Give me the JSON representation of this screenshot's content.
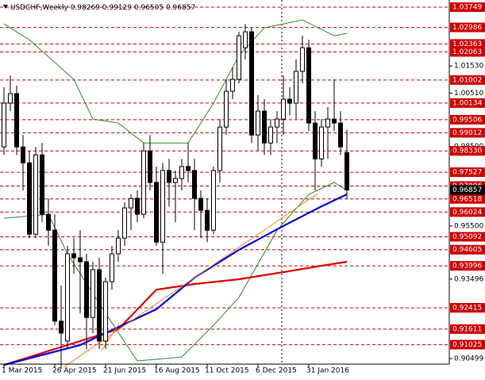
{
  "chart_data": {
    "type": "candlestick",
    "title": "USDCHF,Weekly",
    "xlim": [
      -0.625,
      70.125
    ],
    "ylim": [
      0.9029,
      1.0402
    ],
    "xticks": [
      {
        "value": 0,
        "label": "1 Mar 2015"
      },
      {
        "value": 8,
        "label": "26 Apr 2015"
      },
      {
        "value": 16,
        "label": "21 Jun 2015"
      },
      {
        "value": 24,
        "label": "16 Aug 2015"
      },
      {
        "value": 32,
        "label": "11 Oct 2015"
      },
      {
        "value": 40,
        "label": "6 Dec 2015"
      },
      {
        "value": 48,
        "label": "31 Jan 2016"
      }
    ],
    "yticks": [
      {
        "value": 1.0153,
        "label": "1.01530"
      },
      {
        "value": 1.0051,
        "label": "1.00510"
      },
      {
        "value": 0.985,
        "label": "0.98500"
      },
      {
        "value": 0.955,
        "label": "0.95500"
      },
      0.93496,
      0.90499
    ],
    "levels": [
      1.03749,
      1.02986,
      1.02363,
      1.02063,
      1.01002,
      1.00134,
      0.99506,
      0.99012,
      {
        "value": 0.9833,
        "label": "0.98330"
      },
      0.97527,
      0.97006,
      0.96518,
      0.96024,
      0.95092,
      0.94605,
      0.93996,
      0.92415,
      0.91611,
      0.91025
    ],
    "level_color": "#cc0000",
    "bull_color": "#ffffff",
    "bear_color": "#000000",
    "open": [
      0.9848,
      1.0013,
      1.0049,
      0.9848,
      0.9788,
      0.9519,
      0.9818,
      0.9594,
      0.9534,
      0.9191,
      0.9116,
      0.9445,
      0.943,
      0.9415,
      0.9205,
      0.9385,
      0.9116,
      0.934,
      0.9445,
      0.9504,
      0.9618,
      0.9654,
      0.9594,
      0.9833,
      0.9714,
      0.9489,
      0.9759,
      0.9714,
      0.9729,
      0.9774,
      0.9759,
      0.9654,
      0.9609,
      0.9534,
      0.9759,
      0.9923,
      1.0058,
      1.0103,
      1.0222,
      1.0282,
      0.9893,
      0.9983,
      0.9863,
      0.9923,
      0.9953,
      1.0028,
      1.0013,
      1.0133,
      1.0222,
      0.9938,
      0.9803,
      0.9923,
      0.9953,
      0.9938,
      0.98269
    ],
    "high": [
      1.0073,
      1.0118,
      1.0079,
      0.9893,
      0.9833,
      0.9848,
      0.9863,
      0.9654,
      0.9594,
      0.9325,
      0.9475,
      0.9504,
      0.9534,
      0.9445,
      0.9415,
      0.943,
      0.9355,
      0.9475,
      0.9534,
      0.9639,
      0.9669,
      0.9684,
      0.9863,
      0.9893,
      0.9774,
      0.9788,
      0.9803,
      0.9759,
      0.9803,
      0.9863,
      0.9803,
      0.9684,
      0.9654,
      0.9774,
      0.9953,
      1.0103,
      1.0148,
      1.0282,
      1.0312,
      1.0297,
      1.0043,
      1.0028,
      0.9953,
      0.9983,
      1.0118,
      1.0073,
      1.0178,
      1.0267,
      1.0252,
      0.9983,
      0.9953,
      0.9998,
      1.0103,
      0.9983,
      0.99129
    ],
    "low": [
      0.9818,
      0.9983,
      0.9818,
      0.9684,
      0.9504,
      0.9504,
      0.9564,
      0.9475,
      0.9176,
      0.9011,
      0.9086,
      0.937,
      0.9221,
      0.9086,
      0.9146,
      0.9086,
      0.9086,
      0.931,
      0.9415,
      0.9475,
      0.9534,
      0.9564,
      0.9579,
      0.9684,
      0.9475,
      0.937,
      0.9624,
      0.9564,
      0.9684,
      0.9714,
      0.9534,
      0.9504,
      0.9489,
      0.9519,
      0.9714,
      0.9893,
      1.0028,
      1.0088,
      1.0178,
      0.9863,
      0.9833,
      0.9818,
      0.9818,
      0.9863,
      0.9893,
      0.9968,
      0.9953,
      1.0088,
      0.9908,
      0.9684,
      0.9774,
      0.9803,
      0.9908,
      0.9818,
      0.96505
    ],
    "close": [
      1.0013,
      1.0049,
      0.9848,
      0.9788,
      0.9519,
      0.9818,
      0.9594,
      0.9534,
      0.9191,
      0.9146,
      0.9445,
      0.943,
      0.9415,
      0.9205,
      0.9385,
      0.9116,
      0.934,
      0.9445,
      0.9504,
      0.9618,
      0.9654,
      0.9594,
      0.9833,
      0.9714,
      0.9489,
      0.9759,
      0.9714,
      0.9729,
      0.9774,
      0.9759,
      0.9654,
      0.9609,
      0.9534,
      0.9759,
      0.9923,
      1.0058,
      1.0103,
      1.0267,
      1.0282,
      0.9893,
      0.9983,
      0.9863,
      0.9923,
      0.9953,
      1.0028,
      1.0013,
      1.0133,
      1.0222,
      0.9938,
      0.9803,
      0.9923,
      0.9953,
      0.9938,
      0.9848,
      0.96857
    ],
    "indicators": [
      {
        "color": "#2e8b2e",
        "x": [
          0,
          4,
          11,
          14,
          18,
          22,
          29,
          33,
          37,
          41,
          47,
          52,
          54
        ],
        "values": [
          1.0312,
          1.0252,
          1.0103,
          0.9953,
          0.9938,
          0.9863,
          0.9863,
          1.0013,
          1.0192,
          1.0297,
          1.0327,
          1.0267,
          1.0276
        ]
      },
      {
        "color": "#2e8b2e",
        "x": [
          0,
          7,
          10,
          16,
          21,
          28,
          33,
          37,
          43,
          48,
          52,
          54
        ],
        "values": [
          0.9579,
          0.9594,
          0.9445,
          0.9221,
          0.9041,
          0.9056,
          0.9176,
          0.9281,
          0.9534,
          0.9669,
          0.9714,
          0.9684
        ]
      },
      {
        "color": "#dd0000",
        "x": [
          0,
          12,
          18,
          24,
          30,
          37,
          44,
          50,
          54
        ],
        "values": [
          0.9026,
          0.9116,
          0.9161,
          0.931,
          0.9331,
          0.9349,
          0.9376,
          0.94,
          0.9415
        ]
      },
      {
        "color": "#0000dd",
        "x": [
          0,
          12,
          24,
          30,
          37,
          44,
          50,
          54
        ],
        "values": [
          0.9026,
          0.9101,
          0.9236,
          0.9355,
          0.946,
          0.955,
          0.9624,
          0.9669
        ]
      }
    ]
  }
}
